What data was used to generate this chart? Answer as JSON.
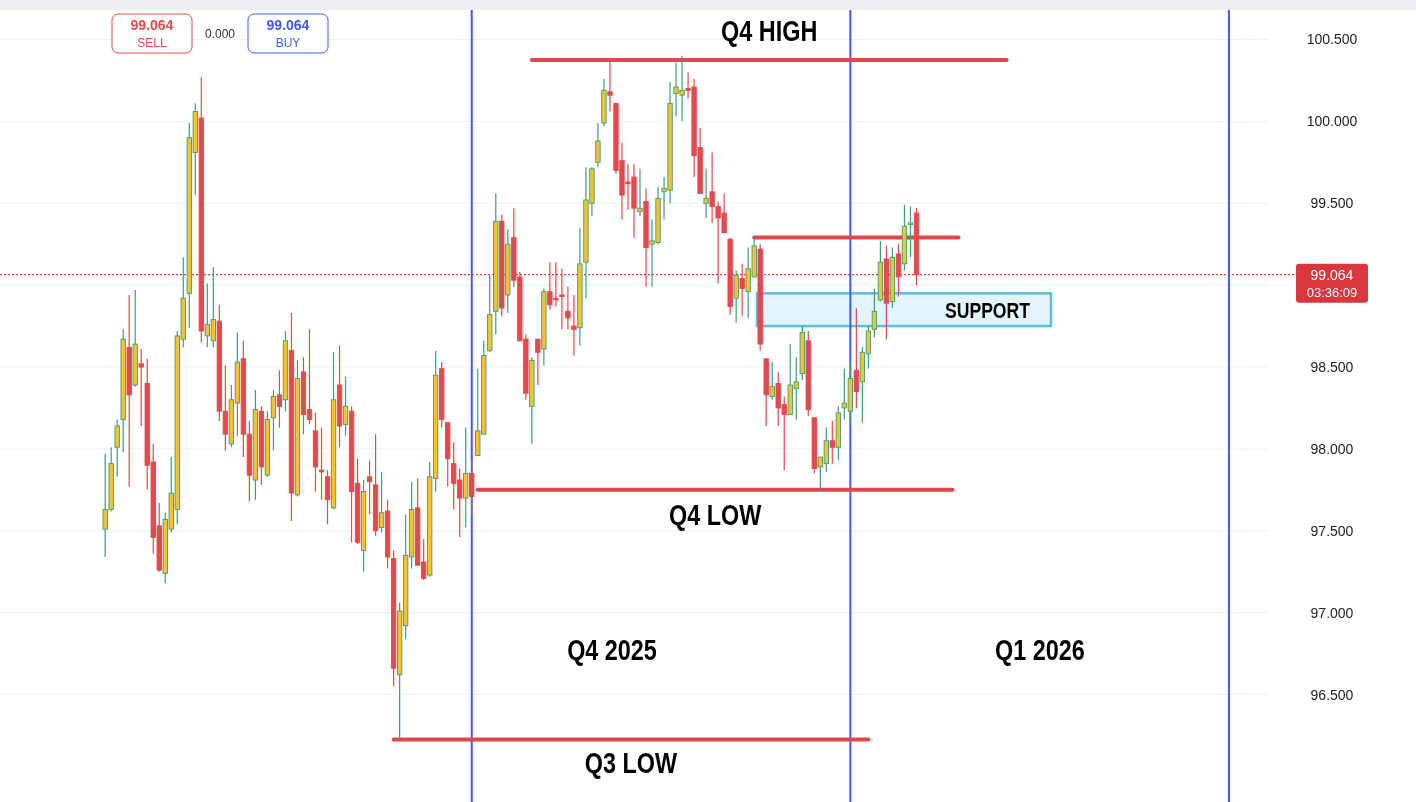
{
  "chart_data": {
    "type": "candlestick",
    "categories": [
      null,
      null,
      null,
      null,
      null,
      null,
      null,
      null,
      null,
      null,
      null,
      null,
      null,
      null,
      null,
      null,
      null,
      null,
      null,
      null,
      null,
      null,
      null,
      null,
      null,
      null,
      null,
      null,
      null,
      null,
      null,
      null,
      null,
      null,
      null,
      null,
      null,
      null,
      null,
      null,
      null,
      null,
      null,
      null,
      null,
      null,
      null,
      null,
      null,
      null,
      null,
      null,
      null,
      null,
      null,
      null,
      null,
      null,
      null,
      null,
      null,
      null,
      null,
      null,
      null,
      null,
      null,
      null,
      null,
      null,
      null,
      null,
      null,
      null,
      null,
      null,
      null,
      null,
      null,
      null,
      null,
      null,
      null,
      null,
      null,
      null,
      null,
      null,
      null,
      null,
      null,
      null,
      null,
      null,
      null,
      null,
      null,
      null,
      null,
      null,
      null,
      null,
      null,
      null,
      null,
      null,
      null,
      null,
      null,
      null,
      null,
      null,
      null,
      null,
      null,
      null,
      null,
      null,
      null,
      null,
      null,
      null,
      null,
      null,
      null,
      null,
      null,
      null,
      null,
      null,
      null,
      null,
      null,
      null,
      null,
      null,
      null,
      null,
      null,
      null,
      null,
      null,
      null,
      null,
      null,
      null,
      null,
      null,
      null,
      null,
      null,
      null,
      null,
      null,
      null,
      null,
      null,
      null,
      null,
      null,
      null,
      null,
      null,
      null,
      null,
      null,
      null,
      null,
      null,
      null,
      null,
      null,
      null,
      null,
      null,
      null,
      null,
      null,
      null,
      null,
      null,
      null,
      null,
      null,
      null,
      null,
      null,
      null,
      null,
      null,
      null,
      null,
      null,
      null,
      null,
      null,
      null,
      null,
      null,
      null,
      null,
      null,
      null,
      null,
      null,
      null,
      null,
      null,
      null,
      null,
      null
    ],
    "ohlc": [
      null,
      null,
      null,
      null,
      null,
      null,
      null,
      null,
      null,
      null,
      null,
      null,
      null,
      null,
      null,
      null,
      null,
      [
        97.51,
        97.97,
        97.34,
        97.63
      ],
      [
        97.63,
        98.01,
        97.62,
        97.91
      ],
      [
        98.01,
        98.18,
        97.83,
        98.14
      ],
      [
        98.18,
        98.73,
        97.98,
        98.67
      ],
      [
        98.62,
        98.94,
        97.77,
        98.33
      ],
      [
        98.39,
        98.97,
        98.38,
        98.64
      ],
      [
        98.52,
        98.61,
        98.14,
        98.5
      ],
      [
        98.4,
        98.55,
        97.75,
        97.9
      ],
      [
        97.92,
        98.03,
        97.36,
        97.46
      ],
      [
        97.53,
        97.67,
        97.25,
        97.26
      ],
      [
        97.24,
        97.61,
        97.18,
        97.57
      ],
      [
        97.51,
        97.95,
        97.49,
        97.73
      ],
      [
        97.63,
        98.72,
        97.54,
        98.69
      ],
      [
        98.67,
        99.17,
        98.62,
        98.92
      ],
      [
        98.95,
        99.99,
        98.74,
        99.9
      ],
      [
        99.81,
        100.11,
        99.55,
        100.06
      ],
      [
        100.02,
        100.27,
        98.65,
        98.72
      ],
      [
        98.69,
        99.01,
        98.62,
        98.76
      ],
      [
        98.66,
        99.11,
        98.62,
        98.79
      ],
      [
        98.78,
        98.88,
        98.17,
        98.23
      ],
      [
        98.23,
        98.51,
        97.99,
        98.09
      ],
      [
        98.03,
        98.39,
        98.01,
        98.3
      ],
      [
        98.28,
        98.71,
        98.08,
        98.53
      ],
      [
        98.55,
        98.66,
        97.95,
        98.09
      ],
      [
        98.09,
        98.17,
        97.68,
        97.84
      ],
      [
        97.81,
        98.36,
        97.69,
        98.24
      ],
      [
        98.23,
        98.26,
        97.78,
        97.89
      ],
      [
        97.84,
        98.23,
        97.83,
        98.18
      ],
      [
        98.19,
        98.36,
        97.99,
        98.32
      ],
      [
        98.33,
        98.48,
        98.13,
        98.26
      ],
      [
        98.3,
        98.72,
        98.23,
        98.66
      ],
      [
        98.6,
        98.83,
        97.56,
        97.73
      ],
      [
        97.72,
        98.54,
        97.71,
        98.43
      ],
      [
        98.47,
        98.56,
        98.09,
        98.21
      ],
      [
        98.24,
        98.73,
        98.15,
        98.18
      ],
      [
        98.11,
        98.22,
        97.74,
        97.89
      ],
      [
        97.87,
        98.13,
        97.69,
        97.86
      ],
      [
        97.83,
        97.87,
        97.54,
        97.69
      ],
      [
        97.64,
        98.59,
        97.63,
        98.3
      ],
      [
        98.39,
        98.63,
        98.01,
        98.14
      ],
      [
        98.15,
        98.44,
        98.08,
        98.26
      ],
      [
        98.23,
        98.26,
        97.43,
        97.74
      ],
      [
        97.79,
        97.94,
        97.42,
        97.43
      ],
      [
        97.38,
        97.81,
        97.25,
        97.74
      ],
      [
        97.83,
        97.93,
        97.6,
        97.8
      ],
      [
        97.78,
        98.09,
        97.47,
        97.5
      ],
      [
        97.52,
        97.86,
        97.49,
        97.61
      ],
      [
        97.62,
        97.69,
        97.27,
        97.34
      ],
      [
        97.33,
        97.38,
        96.55,
        96.66
      ],
      [
        96.62,
        97.06,
        96.23,
        97.01
      ],
      [
        96.92,
        97.6,
        96.84,
        97.35
      ],
      [
        97.34,
        97.8,
        97.27,
        97.63
      ],
      [
        97.64,
        97.82,
        97.29,
        97.29
      ],
      [
        97.31,
        97.45,
        97.2,
        97.21
      ],
      [
        97.23,
        97.92,
        97.22,
        97.83
      ],
      [
        97.82,
        98.6,
        97.74,
        98.45
      ],
      [
        98.49,
        98.53,
        98.13,
        98.18
      ],
      [
        98.16,
        98.16,
        97.77,
        97.94
      ],
      [
        97.91,
        98.04,
        97.63,
        97.79
      ],
      [
        97.81,
        97.88,
        97.46,
        97.7
      ],
      [
        97.7,
        98.13,
        97.52,
        97.85
      ],
      [
        97.85,
        97.93,
        97.6,
        97.71
      ],
      [
        97.96,
        98.49,
        97.96,
        98.11
      ],
      [
        98.09,
        98.66,
        98.09,
        98.57
      ],
      [
        98.6,
        99.06,
        98.59,
        98.82
      ],
      [
        98.84,
        99.56,
        98.7,
        99.39
      ],
      [
        99.39,
        99.43,
        98.81,
        98.86
      ],
      [
        98.94,
        99.34,
        98.83,
        99.25
      ],
      [
        99.29,
        99.47,
        98.99,
        99.03
      ],
      [
        99.05,
        99.08,
        98.66,
        98.66
      ],
      [
        98.67,
        98.7,
        98.3,
        98.34
      ],
      [
        98.26,
        98.56,
        98.03,
        98.54
      ],
      [
        98.67,
        98.67,
        98.39,
        98.59
      ],
      [
        98.61,
        98.98,
        98.51,
        98.96
      ],
      [
        98.96,
        99.14,
        98.85,
        98.88
      ],
      [
        98.92,
        99.14,
        98.87,
        98.91
      ],
      [
        98.94,
        99.1,
        98.73,
        98.93
      ],
      [
        98.84,
        98.99,
        98.73,
        98.8
      ],
      [
        98.75,
        98.94,
        98.57,
        98.73
      ],
      [
        98.74,
        99.35,
        98.63,
        99.13
      ],
      [
        99.14,
        99.72,
        98.92,
        99.52
      ],
      [
        99.5,
        99.72,
        99.42,
        99.71
      ],
      [
        99.75,
        99.99,
        99.72,
        99.88
      ],
      [
        99.99,
        100.26,
        99.97,
        100.19
      ],
      [
        100.18,
        100.37,
        100.06,
        100.16
      ],
      [
        100.11,
        100.11,
        99.68,
        99.7
      ],
      [
        99.76,
        99.87,
        99.4,
        99.55
      ],
      [
        99.63,
        99.74,
        99.46,
        99.62
      ],
      [
        99.66,
        99.74,
        99.29,
        99.47
      ],
      [
        99.45,
        99.71,
        99.42,
        99.47
      ],
      [
        99.51,
        99.59,
        98.99,
        99.23
      ],
      [
        99.25,
        99.4,
        98.99,
        99.27
      ],
      [
        99.26,
        99.6,
        99.25,
        99.53
      ],
      [
        99.57,
        99.66,
        99.4,
        99.59
      ],
      [
        99.58,
        100.24,
        99.5,
        100.11
      ],
      [
        100.17,
        100.36,
        100.03,
        100.21
      ],
      [
        100.16,
        100.4,
        100.0,
        100.19
      ],
      [
        100.2,
        100.3,
        100.14,
        100.19
      ],
      [
        100.21,
        100.26,
        99.66,
        99.79
      ],
      [
        99.84,
        99.96,
        99.56,
        99.56
      ],
      [
        99.5,
        99.71,
        99.41,
        99.53
      ],
      [
        99.57,
        99.81,
        99.38,
        99.48
      ],
      [
        99.48,
        99.51,
        99.01,
        99.41
      ],
      [
        99.44,
        99.56,
        99.32,
        99.32
      ],
      [
        99.28,
        99.29,
        98.82,
        98.87
      ],
      [
        98.92,
        99.09,
        98.77,
        99.06
      ],
      [
        99.04,
        99.13,
        98.81,
        98.98
      ],
      [
        98.96,
        99.23,
        98.8,
        99.1
      ],
      [
        99.05,
        99.3,
        99.05,
        99.24
      ],
      [
        99.22,
        99.25,
        98.6,
        98.64
      ],
      [
        98.55,
        98.55,
        98.14,
        98.33
      ],
      [
        98.32,
        98.53,
        98.3,
        98.38
      ],
      [
        98.4,
        98.47,
        98.14,
        98.25
      ],
      [
        98.27,
        98.32,
        97.87,
        98.21
      ],
      [
        98.21,
        98.64,
        98.21,
        98.39
      ],
      [
        98.37,
        98.56,
        98.18,
        98.41
      ],
      [
        98.46,
        98.75,
        98.42,
        98.71
      ],
      [
        98.66,
        98.72,
        98.2,
        98.24
      ],
      [
        98.19,
        98.19,
        97.85,
        97.88
      ],
      [
        97.89,
        97.95,
        97.75,
        97.95
      ],
      [
        97.91,
        98.13,
        97.86,
        98.05
      ],
      [
        98.05,
        98.17,
        97.91,
        98.01
      ],
      [
        98.01,
        98.26,
        97.93,
        98.22
      ],
      [
        98.25,
        98.49,
        98.18,
        98.28
      ],
      [
        98.23,
        98.53,
        98.15,
        98.43
      ],
      [
        98.48,
        98.86,
        98.25,
        98.35
      ],
      [
        98.41,
        98.62,
        98.16,
        98.59
      ],
      [
        98.58,
        98.75,
        98.49,
        98.72
      ],
      [
        98.73,
        98.98,
        98.68,
        98.84
      ],
      [
        98.91,
        99.27,
        98.9,
        99.14
      ],
      [
        99.16,
        99.24,
        98.67,
        98.89
      ],
      [
        98.9,
        99.23,
        98.86,
        99.17
      ],
      [
        99.19,
        99.25,
        98.93,
        99.05
      ],
      [
        99.13,
        99.49,
        99.09,
        99.36
      ],
      [
        99.37,
        99.48,
        99.17,
        99.38
      ],
      [
        99.44,
        99.47,
        99.0,
        99.064
      ],
      null,
      null,
      null,
      null,
      null,
      null,
      null,
      null,
      null,
      null,
      null,
      null,
      null,
      null,
      null,
      null,
      null,
      null,
      null,
      null,
      null,
      null,
      null,
      null,
      null,
      null,
      null,
      null,
      null,
      null,
      null,
      null,
      null,
      null,
      null,
      null,
      null,
      null,
      null,
      null,
      null,
      null,
      null,
      null,
      null,
      null,
      null,
      null,
      null,
      null,
      null,
      null,
      null,
      null,
      null,
      null,
      null,
      null
    ],
    "series": [
      {
        "type": "line",
        "name": "Q4 HIGH",
        "color": "#e2454b",
        "values": [
          null,
          null,
          null,
          null,
          null,
          null,
          null,
          null,
          null,
          null,
          null,
          null,
          null,
          null,
          null,
          null,
          null,
          null,
          null,
          null,
          null,
          null,
          null,
          null,
          null,
          null,
          null,
          null,
          null,
          null,
          null,
          null,
          null,
          null,
          null,
          null,
          null,
          null,
          null,
          null,
          null,
          null,
          null,
          null,
          null,
          null,
          null,
          null,
          null,
          null,
          null,
          null,
          null,
          null,
          null,
          null,
          null,
          null,
          null,
          null,
          null,
          null,
          null,
          null,
          null,
          null,
          null,
          null,
          null,
          null,
          null,
          null,
          null,
          null,
          null,
          null,
          null,
          null,
          null,
          null,
          null,
          null,
          null,
          null,
          null,
          null,
          null,
          null,
          100.375,
          100.375,
          100.375,
          100.375,
          100.375,
          100.375,
          100.375,
          100.375,
          100.375,
          100.375,
          100.375,
          100.375,
          100.375,
          100.375,
          100.375,
          100.375,
          100.375,
          100.375,
          100.375,
          100.375,
          100.375,
          100.375,
          100.375,
          100.375,
          100.375,
          100.375,
          100.375,
          100.375,
          100.375,
          100.375,
          100.375,
          100.375,
          100.375,
          100.375,
          100.375,
          100.375,
          100.375,
          100.375,
          100.375,
          100.375,
          100.375,
          100.375,
          100.375,
          100.375,
          100.375,
          100.375,
          100.375,
          100.375,
          100.375,
          100.375,
          100.375,
          100.375,
          100.375,
          100.375,
          100.375,
          100.375,
          100.375,
          100.375,
          100.375,
          100.375,
          100.375,
          100.375,
          100.375,
          100.375,
          100.375,
          100.375,
          100.375,
          100.375,
          100.375,
          100.375,
          100.375,
          100.375,
          100.375,
          100.375,
          100.375,
          100.375,
          100.375,
          100.375,
          100.375,
          100.375,
          null,
          null,
          null,
          null,
          null,
          null,
          null,
          null,
          null,
          null,
          null,
          null,
          null,
          null,
          null,
          null,
          null,
          null,
          null,
          null,
          null,
          null,
          null,
          null,
          null,
          null,
          null,
          null,
          null,
          null,
          null,
          null,
          null,
          null,
          null,
          null,
          null,
          null,
          null,
          null,
          null,
          null,
          null
        ]
      },
      {
        "type": "line",
        "color": "#e2454b",
        "values": [
          null,
          null,
          null,
          null,
          null,
          null,
          null,
          null,
          null,
          null,
          null,
          null,
          null,
          null,
          null,
          null,
          null,
          null,
          null,
          null,
          null,
          null,
          null,
          null,
          null,
          null,
          null,
          null,
          null,
          null,
          null,
          null,
          null,
          null,
          null,
          null,
          null,
          null,
          null,
          null,
          null,
          null,
          null,
          null,
          null,
          null,
          null,
          null,
          null,
          null,
          null,
          null,
          null,
          null,
          null,
          null,
          null,
          null,
          null,
          null,
          null,
          null,
          null,
          null,
          null,
          null,
          null,
          null,
          null,
          null,
          null,
          null,
          null,
          null,
          null,
          null,
          null,
          null,
          null,
          null,
          null,
          null,
          null,
          null,
          null,
          null,
          null,
          null,
          null,
          null,
          null,
          null,
          null,
          null,
          null,
          null,
          null,
          null,
          null,
          null,
          null,
          null,
          null,
          null,
          null,
          null,
          null,
          null,
          null,
          null,
          null,
          null,
          null,
          null,
          null,
          null,
          null,
          null,
          null,
          null,
          null,
          null,
          null,
          null,
          null,
          99.291,
          99.291,
          99.291,
          99.291,
          99.291,
          99.291,
          99.291,
          99.291,
          99.291,
          99.291,
          99.291,
          99.291,
          99.291,
          99.291,
          99.291,
          99.291,
          99.291,
          99.291,
          99.291,
          99.291,
          99.291,
          99.291,
          99.291,
          99.291,
          99.291,
          99.291,
          99.291,
          99.291,
          99.291,
          99.291,
          99.291,
          99.291,
          99.291,
          99.291,
          99.291,
          null,
          null,
          null,
          null,
          null,
          null,
          null,
          null,
          null,
          null,
          null,
          null,
          null,
          null,
          null,
          null,
          null,
          null,
          null,
          null,
          null,
          null,
          null,
          null,
          null,
          null,
          null,
          null,
          null,
          null,
          null,
          null,
          null,
          null,
          null,
          null,
          null,
          null,
          null,
          null,
          null,
          null,
          null,
          null,
          null,
          null,
          null,
          null,
          null,
          null,
          null
        ]
      },
      {
        "type": "line",
        "name": "Q4 LOW",
        "color": "#e2454b",
        "values": [
          null,
          null,
          null,
          null,
          null,
          null,
          null,
          null,
          null,
          null,
          null,
          null,
          null,
          null,
          null,
          null,
          null,
          null,
          null,
          null,
          null,
          null,
          null,
          null,
          null,
          null,
          null,
          null,
          null,
          null,
          null,
          null,
          null,
          null,
          null,
          null,
          null,
          null,
          null,
          null,
          null,
          null,
          null,
          null,
          null,
          null,
          null,
          null,
          null,
          null,
          null,
          null,
          null,
          null,
          null,
          null,
          null,
          null,
          null,
          null,
          null,
          null,
          null,
          null,
          null,
          null,
          null,
          null,
          null,
          null,
          null,
          null,
          null,
          null,
          null,
          null,
          null,
          null,
          null,
          97.75,
          97.75,
          97.75,
          97.75,
          97.75,
          97.75,
          97.75,
          97.75,
          97.75,
          97.75,
          97.75,
          97.75,
          97.75,
          97.75,
          97.75,
          97.75,
          97.75,
          97.75,
          97.75,
          97.75,
          97.75,
          97.75,
          97.75,
          97.75,
          97.75,
          97.75,
          97.75,
          97.75,
          97.75,
          97.75,
          97.75,
          97.75,
          97.75,
          97.75,
          97.75,
          97.75,
          97.75,
          97.75,
          97.75,
          97.75,
          97.75,
          97.75,
          97.75,
          97.75,
          97.75,
          97.75,
          97.75,
          97.75,
          97.75,
          97.75,
          97.75,
          97.75,
          97.75,
          97.75,
          97.75,
          97.75,
          97.75,
          97.75,
          97.75,
          97.75,
          97.75,
          97.75,
          97.75,
          97.75,
          97.75,
          97.75,
          97.75,
          97.75,
          97.75,
          97.75,
          97.75,
          97.75,
          97.75,
          97.75,
          97.75,
          97.75,
          97.75,
          97.75,
          97.75,
          97.75,
          null,
          null,
          null,
          null,
          null,
          null,
          null,
          null,
          null,
          null,
          null,
          null,
          null,
          null,
          null,
          null,
          null,
          null,
          null,
          null,
          null,
          null,
          null,
          null,
          null,
          null,
          null,
          null,
          null,
          null,
          null,
          null,
          null,
          null,
          null,
          null,
          null,
          null,
          null,
          null,
          null,
          null,
          null,
          null,
          null,
          null,
          null,
          null,
          null,
          null,
          null,
          null
        ]
      },
      {
        "type": "line",
        "name": "Q3 LOW",
        "color": "#e2454b",
        "values": [
          null,
          null,
          null,
          null,
          null,
          null,
          null,
          null,
          null,
          null,
          null,
          null,
          null,
          null,
          null,
          null,
          null,
          null,
          null,
          null,
          null,
          null,
          null,
          null,
          null,
          null,
          null,
          null,
          null,
          null,
          null,
          null,
          null,
          null,
          null,
          null,
          null,
          null,
          null,
          null,
          null,
          null,
          null,
          null,
          null,
          null,
          null,
          null,
          null,
          null,
          null,
          null,
          null,
          null,
          null,
          null,
          null,
          null,
          null,
          null,
          null,
          null,
          null,
          null,
          null,
          96.225,
          96.225,
          96.225,
          96.225,
          96.225,
          96.225,
          96.225,
          96.225,
          96.225,
          96.225,
          96.225,
          96.225,
          96.225,
          96.225,
          96.225,
          96.225,
          96.225,
          96.225,
          96.225,
          96.225,
          96.225,
          96.225,
          96.225,
          96.225,
          96.225,
          96.225,
          96.225,
          96.225,
          96.225,
          96.225,
          96.225,
          96.225,
          96.225,
          96.225,
          96.225,
          96.225,
          96.225,
          96.225,
          96.225,
          96.225,
          96.225,
          96.225,
          96.225,
          96.225,
          96.225,
          96.225,
          96.225,
          96.225,
          96.225,
          96.225,
          96.225,
          96.225,
          96.225,
          96.225,
          96.225,
          96.225,
          96.225,
          96.225,
          96.225,
          96.225,
          96.225,
          96.225,
          96.225,
          96.225,
          96.225,
          96.225,
          96.225,
          96.225,
          96.225,
          96.225,
          96.225,
          96.225,
          96.225,
          96.225,
          96.225,
          96.225,
          96.225,
          96.225,
          96.225,
          96.225,
          null,
          null,
          null,
          null,
          null,
          null,
          null,
          null,
          null,
          null,
          null,
          null,
          null,
          null,
          null,
          null,
          null,
          null,
          null,
          null,
          null,
          null,
          null,
          null,
          null,
          null,
          null,
          null,
          null,
          null,
          null,
          null,
          null,
          null,
          null,
          null,
          null,
          null,
          null,
          null,
          null,
          null,
          null,
          null,
          null,
          null,
          null,
          null,
          null,
          null,
          null,
          null,
          null,
          null,
          null,
          null,
          null,
          null,
          null,
          null,
          null,
          null,
          null,
          null,
          null,
          null
        ]
      }
    ],
    "ylim": [
      95.85,
      100.68
    ],
    "yticks": [
      {
        "value": 96.5,
        "label": "96.500"
      },
      {
        "value": 97,
        "label": "97.000"
      },
      {
        "value": 97.5,
        "label": "97.500"
      },
      {
        "value": 98,
        "label": "98.000"
      },
      {
        "value": 98.5,
        "label": "98.500"
      },
      {
        "value": 99,
        "label": null
      },
      {
        "value": 99.5,
        "label": "99.500"
      },
      {
        "value": 100,
        "label": "100.000"
      },
      {
        "value": 100.5,
        "label": "100.500"
      }
    ],
    "tick_labels": "y",
    "grid": "y",
    "ref_lines": [
      {
        "axis": "y",
        "value": 99.064,
        "label": "99.064",
        "color": "#d9363e",
        "line_style": "dotted"
      }
    ],
    "bands": [
      {
        "axis": "y",
        "from": 98.75,
        "to": 98.95,
        "label": "SUPPORT",
        "color": "#e1f5fa"
      }
    ],
    "annotations": [
      "99.064",
      "SELL",
      "0.000",
      "99.064",
      "BUY",
      "03:36:09",
      "Q4 2025",
      "Q1 2026"
    ]
  }
}
